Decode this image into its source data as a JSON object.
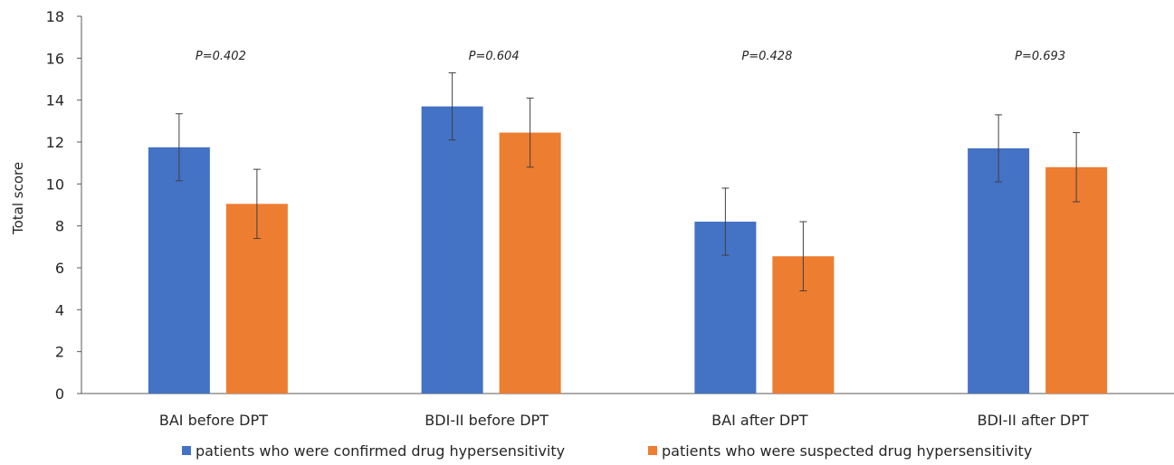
{
  "chart_data": {
    "type": "bar",
    "ylabel": "Total score",
    "ylim": [
      0,
      18
    ],
    "yticks": [
      "0",
      "2",
      "4",
      "6",
      "8",
      "10",
      "12",
      "14",
      "16",
      "18"
    ],
    "categories": [
      "BAI before DPT",
      "BDI-II before DPT",
      "BAI after DPT",
      "BDI-II after DPT"
    ],
    "annotations": [
      "P=0.402",
      "P=0.604",
      "P=0.428",
      "P=0.693"
    ],
    "series": [
      {
        "name": "patients who were confirmed drug hypersensitivity",
        "color": "#4472C4",
        "values": [
          11.75,
          13.7,
          8.2,
          11.7
        ],
        "error": [
          1.6,
          1.6,
          1.6,
          1.6
        ]
      },
      {
        "name": "patients who were suspected drug hypersensitivity",
        "color": "#ED7D31",
        "values": [
          9.05,
          12.45,
          6.55,
          10.8
        ],
        "error": [
          1.65,
          1.65,
          1.65,
          1.65
        ]
      }
    ],
    "grid": false,
    "legend_position": "bottom"
  }
}
